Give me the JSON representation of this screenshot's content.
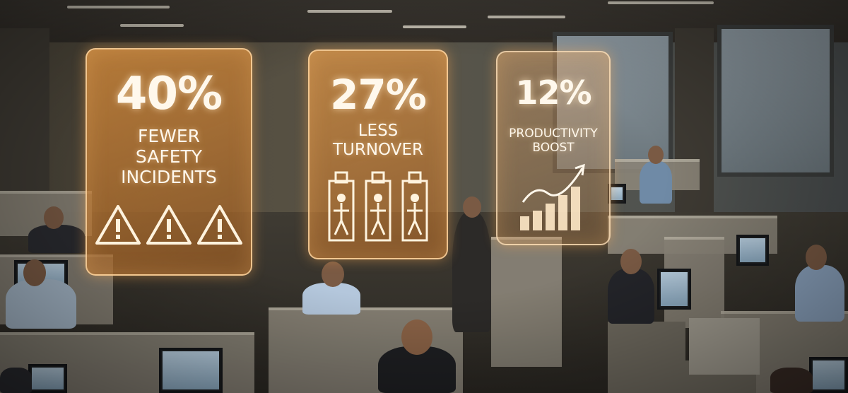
{
  "stats": [
    {
      "value": "40%",
      "line1": "FEWER",
      "line2": "SAFETY",
      "line3": "INCIDENTS",
      "icon": "warning-triangle-icon"
    },
    {
      "value": "27%",
      "line1": "LESS",
      "line2": "TURNOVER",
      "icon": "person-badge-icon"
    },
    {
      "value": "12%",
      "line1": "PRODUCTIVITY",
      "line2": "BOOST",
      "icon": "bar-chart-upward-arrow-icon"
    }
  ],
  "colors": {
    "card_glow": "#ffd6a0",
    "card_fill": "#d68c3c",
    "text": "#fff8ec"
  }
}
